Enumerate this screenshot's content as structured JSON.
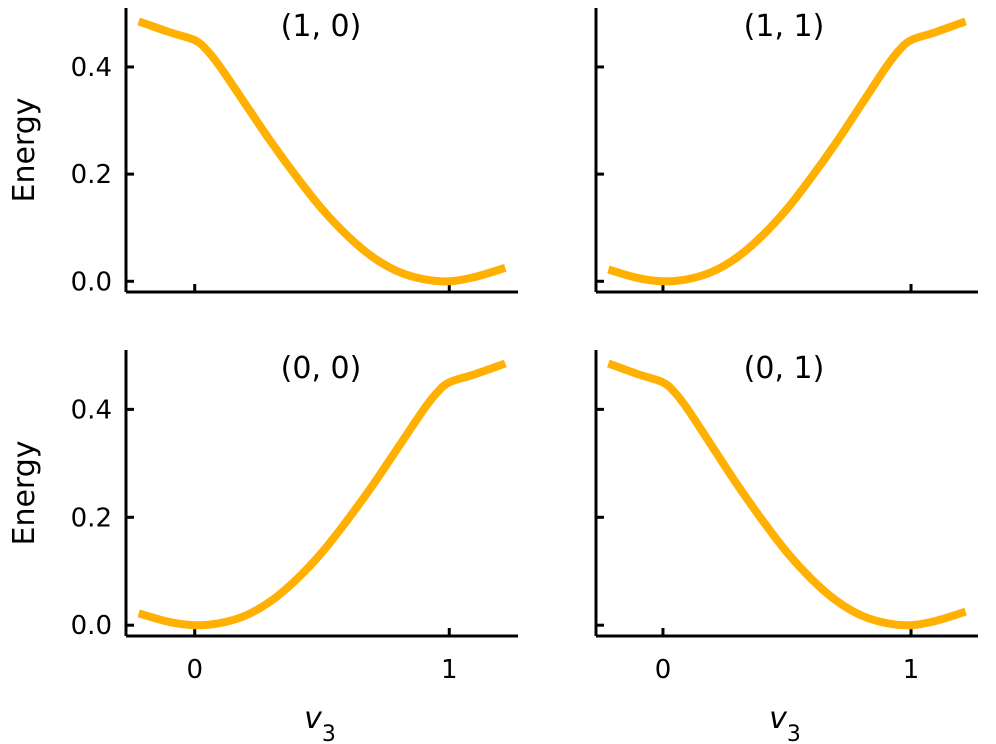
{
  "chart_data": [
    {
      "type": "line",
      "title": "(1, 0)",
      "xlabel": "",
      "ylabel": "Energy",
      "xlim": [
        -0.27,
        1.27
      ],
      "ylim": [
        -0.02,
        0.51
      ],
      "xticks": [
        0,
        1
      ],
      "xtick_labels": [
        "",
        ""
      ],
      "yticks": [
        0.0,
        0.2,
        0.4
      ],
      "ytick_labels": [
        "0.0",
        "0.2",
        "0.4"
      ],
      "grid": false,
      "series": [
        {
          "color": "#FFB000",
          "x": [
            -0.22,
            -0.1,
            0.0,
            0.05,
            0.1,
            0.2,
            0.3,
            0.4,
            0.5,
            0.6,
            0.7,
            0.8,
            0.9,
            1.0,
            1.1,
            1.22
          ],
          "y": [
            0.485,
            0.465,
            0.45,
            0.43,
            0.4,
            0.33,
            0.26,
            0.195,
            0.135,
            0.085,
            0.045,
            0.018,
            0.004,
            0.0,
            0.008,
            0.025
          ]
        }
      ]
    },
    {
      "type": "line",
      "title": "(1, 1)",
      "xlabel": "",
      "ylabel": "",
      "xlim": [
        -0.27,
        1.27
      ],
      "ylim": [
        -0.02,
        0.51
      ],
      "xticks": [
        0,
        1
      ],
      "xtick_labels": [
        "",
        ""
      ],
      "yticks": [
        0.0,
        0.2,
        0.4
      ],
      "ytick_labels": [
        "",
        "",
        ""
      ],
      "grid": false,
      "series": [
        {
          "color": "#FFB000",
          "x": [
            -0.22,
            -0.1,
            0.0,
            0.1,
            0.2,
            0.3,
            0.4,
            0.5,
            0.6,
            0.7,
            0.8,
            0.9,
            0.95,
            1.0,
            1.1,
            1.22
          ],
          "y": [
            0.022,
            0.006,
            0.0,
            0.004,
            0.018,
            0.045,
            0.085,
            0.135,
            0.195,
            0.26,
            0.33,
            0.4,
            0.43,
            0.45,
            0.465,
            0.485
          ]
        }
      ]
    },
    {
      "type": "line",
      "title": "(0, 0)",
      "xlabel": "v3",
      "ylabel": "Energy",
      "xlim": [
        -0.27,
        1.27
      ],
      "ylim": [
        -0.02,
        0.51
      ],
      "xticks": [
        0,
        1
      ],
      "xtick_labels": [
        "0",
        "1"
      ],
      "yticks": [
        0.0,
        0.2,
        0.4
      ],
      "ytick_labels": [
        "0.0",
        "0.2",
        "0.4"
      ],
      "grid": false,
      "series": [
        {
          "color": "#FFB000",
          "x": [
            -0.22,
            -0.1,
            0.0,
            0.1,
            0.2,
            0.3,
            0.4,
            0.5,
            0.6,
            0.7,
            0.8,
            0.9,
            0.95,
            1.0,
            1.1,
            1.22
          ],
          "y": [
            0.022,
            0.006,
            0.0,
            0.004,
            0.018,
            0.045,
            0.085,
            0.135,
            0.195,
            0.26,
            0.33,
            0.4,
            0.43,
            0.45,
            0.465,
            0.485
          ]
        }
      ]
    },
    {
      "type": "line",
      "title": "(0, 1)",
      "xlabel": "v3",
      "ylabel": "",
      "xlim": [
        -0.27,
        1.27
      ],
      "ylim": [
        -0.02,
        0.51
      ],
      "xticks": [
        0,
        1
      ],
      "xtick_labels": [
        "0",
        "1"
      ],
      "yticks": [
        0.0,
        0.2,
        0.4
      ],
      "ytick_labels": [
        "",
        "",
        ""
      ],
      "grid": false,
      "series": [
        {
          "color": "#FFB000",
          "x": [
            -0.22,
            -0.1,
            0.0,
            0.05,
            0.1,
            0.2,
            0.3,
            0.4,
            0.5,
            0.6,
            0.7,
            0.8,
            0.9,
            1.0,
            1.1,
            1.22
          ],
          "y": [
            0.485,
            0.465,
            0.45,
            0.43,
            0.4,
            0.33,
            0.26,
            0.195,
            0.135,
            0.085,
            0.045,
            0.018,
            0.004,
            0.0,
            0.008,
            0.025
          ]
        }
      ]
    }
  ]
}
